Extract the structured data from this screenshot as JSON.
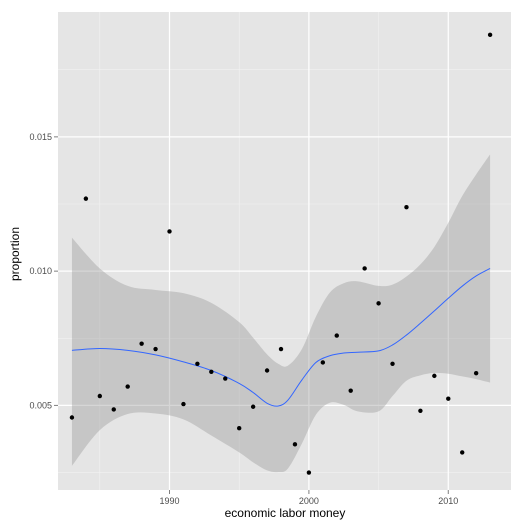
{
  "chart_data": {
    "type": "scatter",
    "xlabel": "economic labor money",
    "ylabel": "proportion",
    "xlim": [
      1982,
      2014.5
    ],
    "ylim": [
      0.00185,
      0.01965
    ],
    "x_ticks": [
      1990,
      2000,
      2010
    ],
    "x_tick_labels": [
      "1990",
      "2000",
      "2010"
    ],
    "y_ticks": [
      0.005,
      0.01,
      0.015
    ],
    "y_tick_labels": [
      "0.005",
      "0.010",
      "0.015"
    ],
    "grid": true,
    "colors": {
      "panel_background": "#e5e5e5",
      "grid_major": "#ffffff",
      "grid_minor": "#f2f2f2",
      "points": "#000000",
      "smooth_line": "#3366ff",
      "confidence_band": "#999999"
    },
    "points": {
      "x": [
        1983,
        1984,
        1985,
        1986,
        1987,
        1988,
        1989,
        1990,
        1991,
        1992,
        1993,
        1994,
        1995,
        1996,
        1997,
        1998,
        1999,
        2000,
        2001,
        2002,
        2003,
        2004,
        2005,
        2006,
        2007,
        2008,
        2009,
        2010,
        2011,
        2012,
        2013
      ],
      "y": [
        0.00455,
        0.0127,
        0.00535,
        0.00485,
        0.0057,
        0.0073,
        0.0071,
        0.01148,
        0.00505,
        0.00655,
        0.00625,
        0.006,
        0.00415,
        0.00495,
        0.0063,
        0.0071,
        0.00355,
        0.0025,
        0.0066,
        0.0076,
        0.00555,
        0.0101,
        0.0088,
        0.00655,
        0.01238,
        0.0048,
        0.0061,
        0.00525,
        0.00325,
        0.0062,
        0.0188
      ]
    },
    "smooth": {
      "x": [
        1983,
        1985,
        1987,
        1989,
        1991,
        1993,
        1995,
        1996,
        1997,
        1997.8,
        1998.5,
        1999.5,
        2000.5,
        2001.5,
        2002.5,
        2003.5,
        2005,
        2006,
        2007,
        2008,
        2009,
        2010,
        2011,
        2012,
        2013
      ],
      "y": [
        0.00705,
        0.00712,
        0.00705,
        0.00688,
        0.00662,
        0.0063,
        0.00582,
        0.00548,
        0.00508,
        0.00498,
        0.0052,
        0.00595,
        0.0066,
        0.00685,
        0.00695,
        0.00698,
        0.00703,
        0.00725,
        0.00762,
        0.00806,
        0.00852,
        0.00899,
        0.00944,
        0.00982,
        0.0101
      ],
      "upper": [
        0.01125,
        0.0101,
        0.00945,
        0.0093,
        0.00918,
        0.00882,
        0.0081,
        0.00752,
        0.0069,
        0.00655,
        0.00648,
        0.0071,
        0.0083,
        0.0092,
        0.00955,
        0.00962,
        0.00945,
        0.0095,
        0.0098,
        0.01025,
        0.0109,
        0.0118,
        0.0128,
        0.0136,
        0.01435
      ],
      "lower": [
        0.00275,
        0.00408,
        0.00468,
        0.0047,
        0.00448,
        0.00388,
        0.00325,
        0.00288,
        0.00258,
        0.00252,
        0.00265,
        0.00358,
        0.00465,
        0.0051,
        0.00502,
        0.00478,
        0.00478,
        0.00535,
        0.00592,
        0.00612,
        0.00621,
        0.00618,
        0.00608,
        0.00598,
        0.00585
      ]
    }
  }
}
